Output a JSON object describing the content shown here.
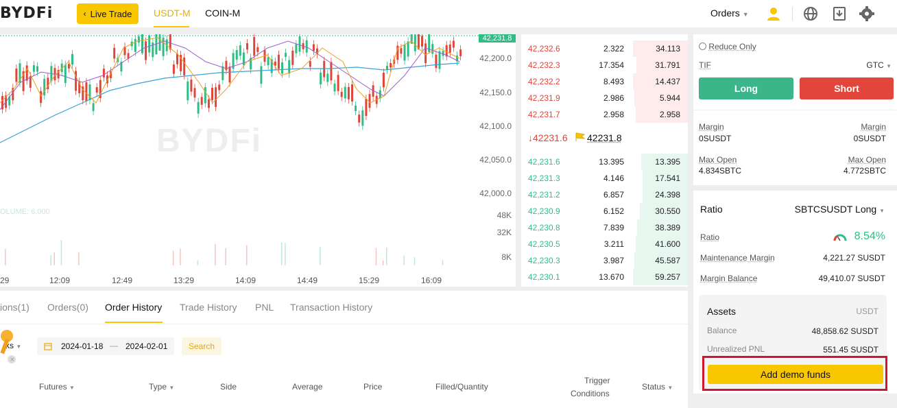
{
  "header": {
    "logo": "BYDFi",
    "live_trade": "Live Trade",
    "tabs": [
      "USDT-M",
      "COIN-M"
    ],
    "orders_menu": "Orders"
  },
  "chart": {
    "last_price_tag": "42,231.8",
    "y_ticks": [
      "42,200.0",
      "42,150.0",
      "42,100.0",
      "42,050.0",
      "42,000.0"
    ],
    "vol_ticks": [
      "48K",
      "32K",
      "8K"
    ],
    "volume_label": "OLUME: 6.000",
    "watermark": "BYDFi",
    "x_ticks": [
      "29",
      "12:09",
      "12:49",
      "13:29",
      "14:09",
      "14:49",
      "15:29",
      "16:09"
    ]
  },
  "orderbook": {
    "asks": [
      {
        "price": "42,232.6",
        "qty": "2.322",
        "total": "34.113"
      },
      {
        "price": "42,232.3",
        "qty": "17.354",
        "total": "31.791"
      },
      {
        "price": "42,232.2",
        "qty": "8.493",
        "total": "14.437"
      },
      {
        "price": "42,231.9",
        "qty": "2.986",
        "total": "5.944"
      },
      {
        "price": "42,231.7",
        "qty": "2.958",
        "total": "2.958"
      }
    ],
    "last_price": "↓42231.6",
    "mark_price": "42231.8",
    "bids": [
      {
        "price": "42,231.6",
        "qty": "13.395",
        "total": "13.395"
      },
      {
        "price": "42,231.3",
        "qty": "4.146",
        "total": "17.541"
      },
      {
        "price": "42,231.2",
        "qty": "6.857",
        "total": "24.398"
      },
      {
        "price": "42,230.9",
        "qty": "6.152",
        "total": "30.550"
      },
      {
        "price": "42,230.8",
        "qty": "7.839",
        "total": "38.389"
      },
      {
        "price": "42,230.5",
        "qty": "3.211",
        "total": "41.600"
      },
      {
        "price": "42,230.3",
        "qty": "3.987",
        "total": "45.587"
      },
      {
        "price": "42,230.1",
        "qty": "13.670",
        "total": "59.257"
      }
    ]
  },
  "bottom": {
    "tabs": [
      "ions(1)",
      "Orders(0)",
      "Order History",
      "Trade History",
      "PNL",
      "Transaction History"
    ],
    "filter_partial": "ks",
    "date_from": "2024-01-18",
    "date_sep": "—",
    "date_to": "2024-02-01",
    "search": "Search",
    "columns": [
      "Futures",
      "Type",
      "Side",
      "Average",
      "Price",
      "Filled/Quantity",
      "Trigger",
      "Conditions",
      "Status"
    ]
  },
  "trade": {
    "reduce_only": "Reduce Only",
    "tif_label": "TIF",
    "tif_value": "GTC",
    "long": "Long",
    "short": "Short",
    "margin_label": "Margin",
    "margin_left": "0SUSDT",
    "margin_right": "0SUSDT",
    "max_open_label": "Max Open",
    "max_open_left": "4.834SBTC",
    "max_open_right": "4.772SBTC"
  },
  "ratio": {
    "title": "Ratio",
    "pair": "SBTCSUSDT Long",
    "ratio_label": "Ratio",
    "ratio_value": "8.54%",
    "maint_label": "Maintenance Margin",
    "maint_value": "4,221.27 SUSDT",
    "balance_label": "Margin Balance",
    "balance_value": "49,410.07 SUSDT",
    "assets_title": "Assets",
    "assets_unit": "USDT",
    "asset_balance_label": "Balance",
    "asset_balance_value": "48,858.62 SUSDT",
    "upnl_label": "Unrealized PNL",
    "upnl_value": "551.45 SUSDT",
    "add_funds": "Add demo funds"
  },
  "colors": {
    "brand": "#f8c700",
    "up": "#2fbd85",
    "down": "#e0453a",
    "highlight": "#d0152f"
  }
}
